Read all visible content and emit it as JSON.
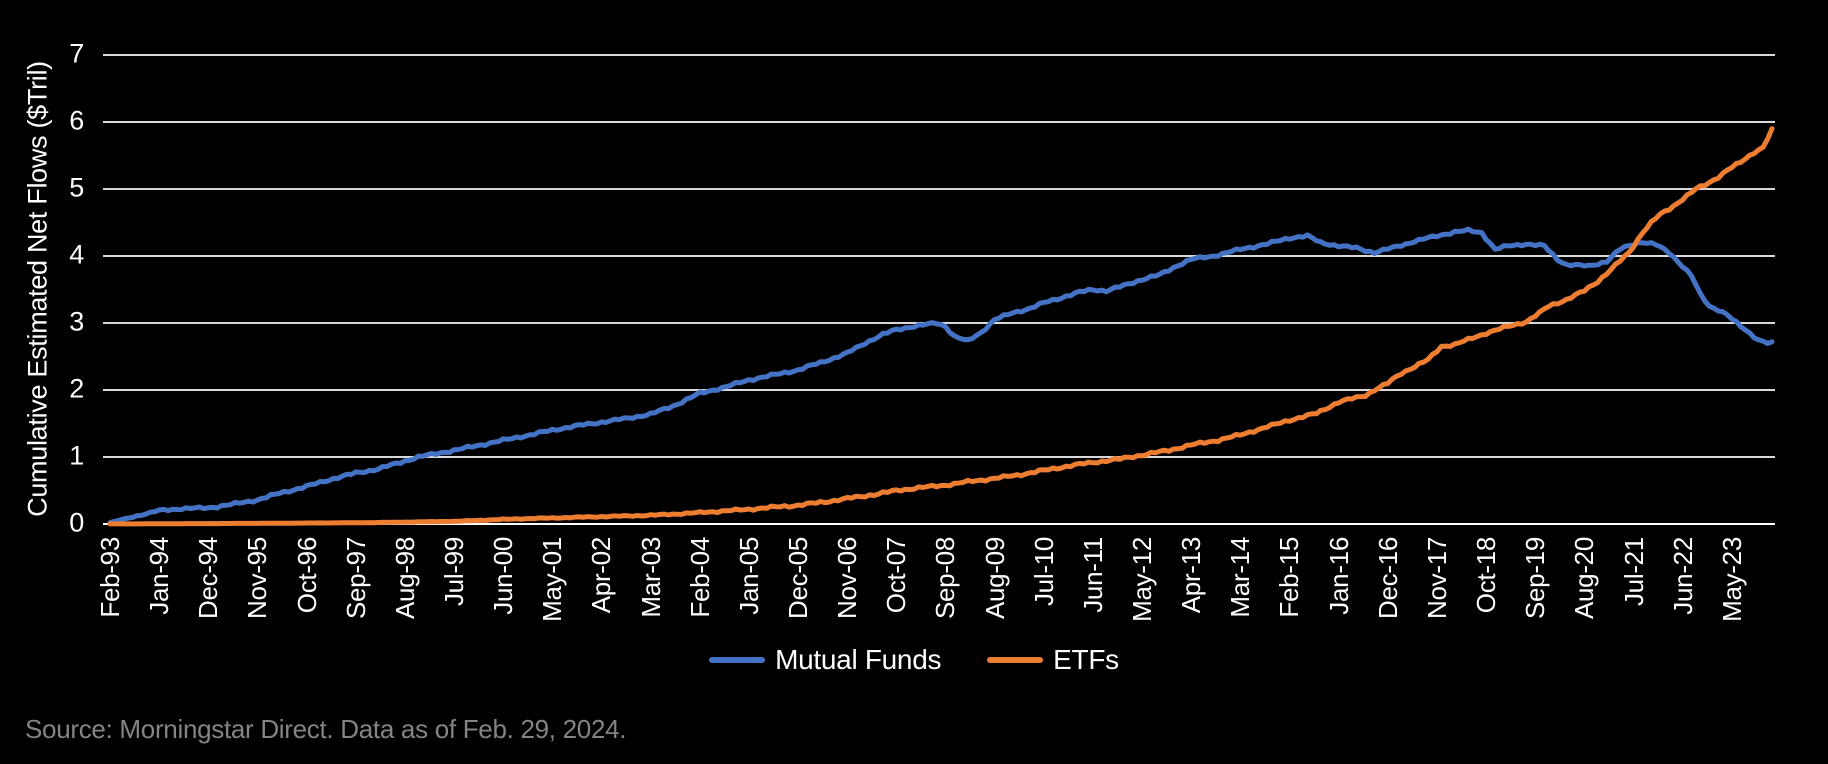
{
  "chart_data": {
    "type": "line",
    "title": "",
    "xlabel": "",
    "ylabel": "Cumulative Estimated Net Flows ($Tril)",
    "ylim": [
      0,
      7
    ],
    "y_ticks": [
      0,
      1,
      2,
      3,
      4,
      5,
      6,
      7
    ],
    "x_range": [
      "Feb-93",
      "Feb-24"
    ],
    "x_tick_labels": [
      "Feb-93",
      "Jan-94",
      "Dec-94",
      "Nov-95",
      "Oct-96",
      "Sep-97",
      "Aug-98",
      "Jul-99",
      "Jun-00",
      "May-01",
      "Apr-02",
      "Mar-03",
      "Feb-04",
      "Jan-05",
      "Dec-05",
      "Nov-06",
      "Oct-07",
      "Sep-08",
      "Aug-09",
      "Jul-10",
      "Jun-11",
      "May-12",
      "Apr-13",
      "Mar-14",
      "Feb-15",
      "Jan-16",
      "Dec-16",
      "Nov-17",
      "Oct-18",
      "Sep-19",
      "Aug-20",
      "Jul-21",
      "Jun-22",
      "May-23"
    ],
    "grid": "horizontal",
    "legend_position": "bottom-center",
    "series": [
      {
        "name": "Mutual Funds",
        "color": "#4472C4",
        "points": [
          [
            "Feb-93",
            0.02
          ],
          [
            "Aug-93",
            0.12
          ],
          [
            "Jan-94",
            0.2
          ],
          [
            "Jun-94",
            0.23
          ],
          [
            "Dec-94",
            0.24
          ],
          [
            "Jun-95",
            0.3
          ],
          [
            "Nov-95",
            0.36
          ],
          [
            "Apr-96",
            0.46
          ],
          [
            "Oct-96",
            0.56
          ],
          [
            "Mar-97",
            0.66
          ],
          [
            "Sep-97",
            0.76
          ],
          [
            "Feb-98",
            0.82
          ],
          [
            "Jun-98",
            0.9
          ],
          [
            "Nov-98",
            1.0
          ],
          [
            "Mar-99",
            1.05
          ],
          [
            "Jul-99",
            1.1
          ],
          [
            "Jan-00",
            1.18
          ],
          [
            "Jun-00",
            1.25
          ],
          [
            "Dec-00",
            1.33
          ],
          [
            "May-01",
            1.4
          ],
          [
            "Oct-01",
            1.46
          ],
          [
            "Apr-02",
            1.52
          ],
          [
            "Oct-02",
            1.58
          ],
          [
            "Mar-03",
            1.64
          ],
          [
            "Aug-03",
            1.76
          ],
          [
            "Feb-04",
            1.95
          ],
          [
            "Aug-04",
            2.05
          ],
          [
            "Jan-05",
            2.15
          ],
          [
            "Jul-05",
            2.23
          ],
          [
            "Dec-05",
            2.3
          ],
          [
            "Jun-06",
            2.43
          ],
          [
            "Nov-06",
            2.55
          ],
          [
            "Mar-07",
            2.7
          ],
          [
            "Jul-07",
            2.83
          ],
          [
            "Oct-07",
            2.9
          ],
          [
            "Jan-08",
            2.94
          ],
          [
            "May-08",
            2.98
          ],
          [
            "Jul-08",
            3.0
          ],
          [
            "Sep-08",
            2.95
          ],
          [
            "Nov-08",
            2.8
          ],
          [
            "Feb-09",
            2.73
          ],
          [
            "May-09",
            2.86
          ],
          [
            "Aug-09",
            3.05
          ],
          [
            "Dec-09",
            3.15
          ],
          [
            "Apr-10",
            3.22
          ],
          [
            "Jul-10",
            3.3
          ],
          [
            "Nov-10",
            3.38
          ],
          [
            "Mar-11",
            3.46
          ],
          [
            "Jun-11",
            3.5
          ],
          [
            "Sep-11",
            3.48
          ],
          [
            "Jan-12",
            3.56
          ],
          [
            "May-12",
            3.65
          ],
          [
            "Sep-12",
            3.72
          ],
          [
            "Jan-13",
            3.86
          ],
          [
            "Apr-13",
            3.95
          ],
          [
            "Sep-13",
            4.0
          ],
          [
            "Mar-14",
            4.1
          ],
          [
            "Sep-14",
            4.18
          ],
          [
            "Feb-15",
            4.27
          ],
          [
            "Jun-15",
            4.3
          ],
          [
            "Sep-15",
            4.2
          ],
          [
            "Jan-16",
            4.15
          ],
          [
            "May-16",
            4.12
          ],
          [
            "Sep-16",
            4.05
          ],
          [
            "Jan-17",
            4.12
          ],
          [
            "Jun-17",
            4.22
          ],
          [
            "Nov-17",
            4.3
          ],
          [
            "Mar-18",
            4.36
          ],
          [
            "Jun-18",
            4.38
          ],
          [
            "Sep-18",
            4.35
          ],
          [
            "Dec-18",
            4.1
          ],
          [
            "Mar-19",
            4.15
          ],
          [
            "Jul-19",
            4.18
          ],
          [
            "Nov-19",
            4.15
          ],
          [
            "Feb-20",
            3.95
          ],
          [
            "Apr-20",
            3.87
          ],
          [
            "Sep-20",
            3.85
          ],
          [
            "Jan-21",
            3.92
          ],
          [
            "Apr-21",
            4.1
          ],
          [
            "Jul-21",
            4.18
          ],
          [
            "Sep-21",
            4.21
          ],
          [
            "Dec-21",
            4.17
          ],
          [
            "Mar-22",
            4.05
          ],
          [
            "Jun-22",
            3.85
          ],
          [
            "Aug-22",
            3.7
          ],
          [
            "Oct-22",
            3.42
          ],
          [
            "Dec-22",
            3.25
          ],
          [
            "Feb-23",
            3.2
          ],
          [
            "Apr-23",
            3.12
          ],
          [
            "Jun-23",
            3.0
          ],
          [
            "Sep-23",
            2.85
          ],
          [
            "Nov-23",
            2.75
          ],
          [
            "Jan-24",
            2.7
          ],
          [
            "Feb-24",
            2.72
          ]
        ]
      },
      {
        "name": "ETFs",
        "color": "#ED7D31",
        "points": [
          [
            "Feb-93",
            0.0
          ],
          [
            "Dec-95",
            0.01
          ],
          [
            "Dec-97",
            0.02
          ],
          [
            "Jul-99",
            0.04
          ],
          [
            "Mar-00",
            0.06
          ],
          [
            "Jun-00",
            0.07
          ],
          [
            "May-01",
            0.09
          ],
          [
            "Apr-02",
            0.11
          ],
          [
            "Mar-03",
            0.13
          ],
          [
            "Sep-03",
            0.15
          ],
          [
            "Feb-04",
            0.17
          ],
          [
            "Jan-05",
            0.22
          ],
          [
            "Dec-05",
            0.28
          ],
          [
            "Jun-06",
            0.33
          ],
          [
            "Nov-06",
            0.38
          ],
          [
            "Jun-07",
            0.45
          ],
          [
            "Oct-07",
            0.5
          ],
          [
            "Mar-08",
            0.54
          ],
          [
            "Sep-08",
            0.58
          ],
          [
            "Mar-09",
            0.64
          ],
          [
            "Aug-09",
            0.68
          ],
          [
            "Feb-10",
            0.74
          ],
          [
            "Jul-10",
            0.8
          ],
          [
            "Jan-11",
            0.87
          ],
          [
            "Jun-11",
            0.92
          ],
          [
            "Dec-11",
            0.97
          ],
          [
            "May-12",
            1.03
          ],
          [
            "Nov-12",
            1.1
          ],
          [
            "Apr-13",
            1.18
          ],
          [
            "Oct-13",
            1.25
          ],
          [
            "Mar-14",
            1.33
          ],
          [
            "Sep-14",
            1.45
          ],
          [
            "Feb-15",
            1.55
          ],
          [
            "Aug-15",
            1.65
          ],
          [
            "Jan-16",
            1.82
          ],
          [
            "Jul-16",
            1.92
          ],
          [
            "Sep-16",
            2.0
          ],
          [
            "Dec-16",
            2.1
          ],
          [
            "Mar-17",
            2.25
          ],
          [
            "Jun-17",
            2.35
          ],
          [
            "Sep-17",
            2.45
          ],
          [
            "Dec-17",
            2.65
          ],
          [
            "Mar-18",
            2.68
          ],
          [
            "Jun-18",
            2.75
          ],
          [
            "Oct-18",
            2.85
          ],
          [
            "Feb-19",
            2.93
          ],
          [
            "Jul-19",
            3.02
          ],
          [
            "Oct-19",
            3.15
          ],
          [
            "Dec-19",
            3.25
          ],
          [
            "Apr-20",
            3.35
          ],
          [
            "Aug-20",
            3.48
          ],
          [
            "Nov-20",
            3.62
          ],
          [
            "Feb-21",
            3.8
          ],
          [
            "Jun-21",
            4.05
          ],
          [
            "Sep-21",
            4.35
          ],
          [
            "Nov-21",
            4.5
          ],
          [
            "Jan-22",
            4.62
          ],
          [
            "Mar-22",
            4.7
          ],
          [
            "Jun-22",
            4.85
          ],
          [
            "Sep-22",
            5.0
          ],
          [
            "Nov-22",
            5.06
          ],
          [
            "Feb-23",
            5.18
          ],
          [
            "Apr-23",
            5.28
          ],
          [
            "Jul-23",
            5.4
          ],
          [
            "Oct-23",
            5.55
          ],
          [
            "Dec-23",
            5.62
          ],
          [
            "Jan-24",
            5.75
          ],
          [
            "Feb-24",
            5.9
          ]
        ]
      }
    ]
  },
  "legend": {
    "items": [
      {
        "label": "Mutual Funds",
        "color": "#4472C4"
      },
      {
        "label": "ETFs",
        "color": "#ED7D31"
      }
    ]
  },
  "footer": {
    "source": "Source: Morningstar Direct. Data as of Feb. 29, 2024."
  },
  "colors": {
    "background": "#000000",
    "gridline": "#D9D9D9",
    "axis_line": "#FFFFFF",
    "text": "#FFFFFF",
    "source_text": "#848484"
  }
}
